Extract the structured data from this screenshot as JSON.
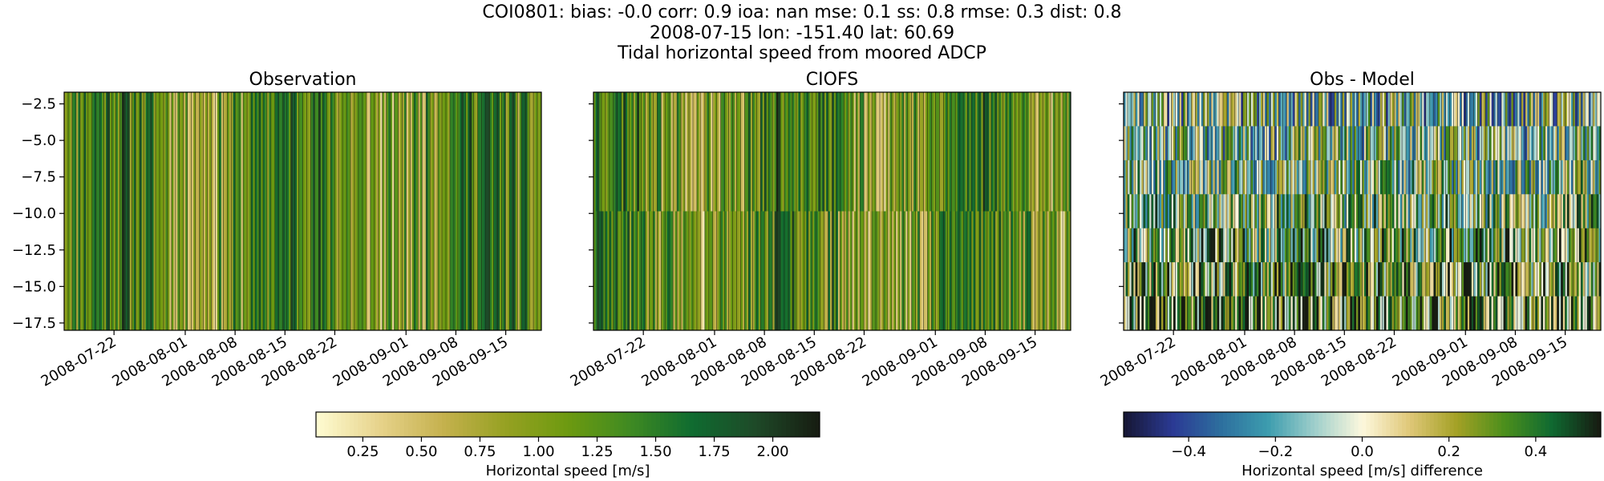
{
  "header": {
    "line1": "COI0801: bias: -0.0  corr: 0.9  ioa: nan  mse: 0.1  ss: 0.8  rmse: 0.3  dist: 0.8",
    "line2": "2008-07-15 lon: -151.40 lat: 60.69",
    "line3": "Tidal horizontal speed from moored ADCP"
  },
  "chart_data": [
    {
      "type": "heatmap",
      "title": "Observation",
      "ylabel": "",
      "yticks": [
        -2.5,
        -5.0,
        -7.5,
        -10.0,
        -12.5,
        -15.0,
        -17.5
      ],
      "ylim": [
        -18.0,
        -1.7
      ],
      "xlim": [
        "2008-07-15",
        "2008-09-20"
      ],
      "xticks": [
        "2008-07-22",
        "2008-08-01",
        "2008-08-08",
        "2008-08-15",
        "2008-08-22",
        "2008-09-01",
        "2008-09-08",
        "2008-09-15"
      ],
      "colormap": "speed",
      "depth_layers": 1,
      "seed": 11
    },
    {
      "type": "heatmap",
      "title": "CIOFS",
      "yticks": [
        -2.5,
        -5.0,
        -7.5,
        -10.0,
        -12.5,
        -15.0,
        -17.5
      ],
      "ylim": [
        -18.0,
        -1.7
      ],
      "xlim": [
        "2008-07-15",
        "2008-09-20"
      ],
      "xticks": [
        "2008-07-22",
        "2008-08-01",
        "2008-08-08",
        "2008-08-15",
        "2008-08-22",
        "2008-09-01",
        "2008-09-08",
        "2008-09-15"
      ],
      "colormap": "speed",
      "depth_layers": 2,
      "seed": 23
    },
    {
      "type": "heatmap",
      "title": "Obs - Model",
      "yticks": [
        -2.5,
        -5.0,
        -7.5,
        -10.0,
        -12.5,
        -15.0,
        -17.5
      ],
      "ylim": [
        -18.0,
        -1.7
      ],
      "xlim": [
        "2008-07-15",
        "2008-09-20"
      ],
      "xticks": [
        "2008-07-22",
        "2008-08-01",
        "2008-08-08",
        "2008-08-15",
        "2008-08-22",
        "2008-09-01",
        "2008-09-08",
        "2008-09-15"
      ],
      "colormap": "diff",
      "depth_layers": 7,
      "seed": 37
    }
  ],
  "colorbars": [
    {
      "label": "Horizontal speed [m/s]",
      "range": [
        0.05,
        2.2
      ],
      "ticks": [
        0.25,
        0.5,
        0.75,
        1.0,
        1.25,
        1.5,
        1.75,
        2.0
      ],
      "tick_labels": [
        "0.25",
        "0.50",
        "0.75",
        "1.00",
        "1.25",
        "1.50",
        "1.75",
        "2.00"
      ],
      "colormap": "speed"
    },
    {
      "label": "Horizontal speed [m/s] difference",
      "range": [
        -0.55,
        0.55
      ],
      "ticks": [
        -0.4,
        -0.2,
        0.0,
        0.2,
        0.4
      ],
      "tick_labels": [
        "−0.4",
        "−0.2",
        "0.0",
        "0.2",
        "0.4"
      ],
      "colormap": "diff"
    }
  ],
  "colors": {
    "speed": [
      "#fefbd0",
      "#e6d28a",
      "#c5b14e",
      "#96a122",
      "#6d9a10",
      "#3f8a22",
      "#0f6b30",
      "#1e4a28",
      "#171d12"
    ],
    "diff": [
      "#171837",
      "#2b3a94",
      "#2d6e9e",
      "#3c9cae",
      "#9fcfcb",
      "#fdf8dd",
      "#dfc778",
      "#a3a125",
      "#4c8f1c",
      "#0f6a31",
      "#171d12"
    ]
  }
}
